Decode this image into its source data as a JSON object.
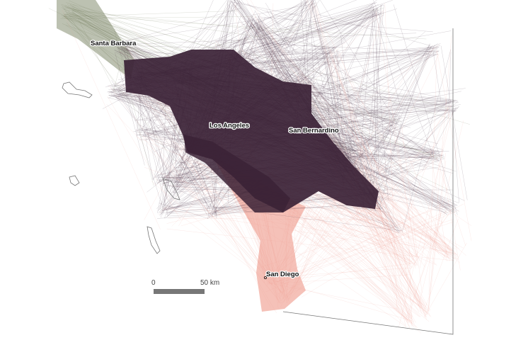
{
  "labels": {
    "santa_barbara": "Santa Barbara",
    "los_angeles": "Los Angeles",
    "san_bernardino": "San Bernardino",
    "san_diego": "San Diego"
  },
  "scale_bar": {
    "start": "0",
    "end": "50 km"
  }
}
